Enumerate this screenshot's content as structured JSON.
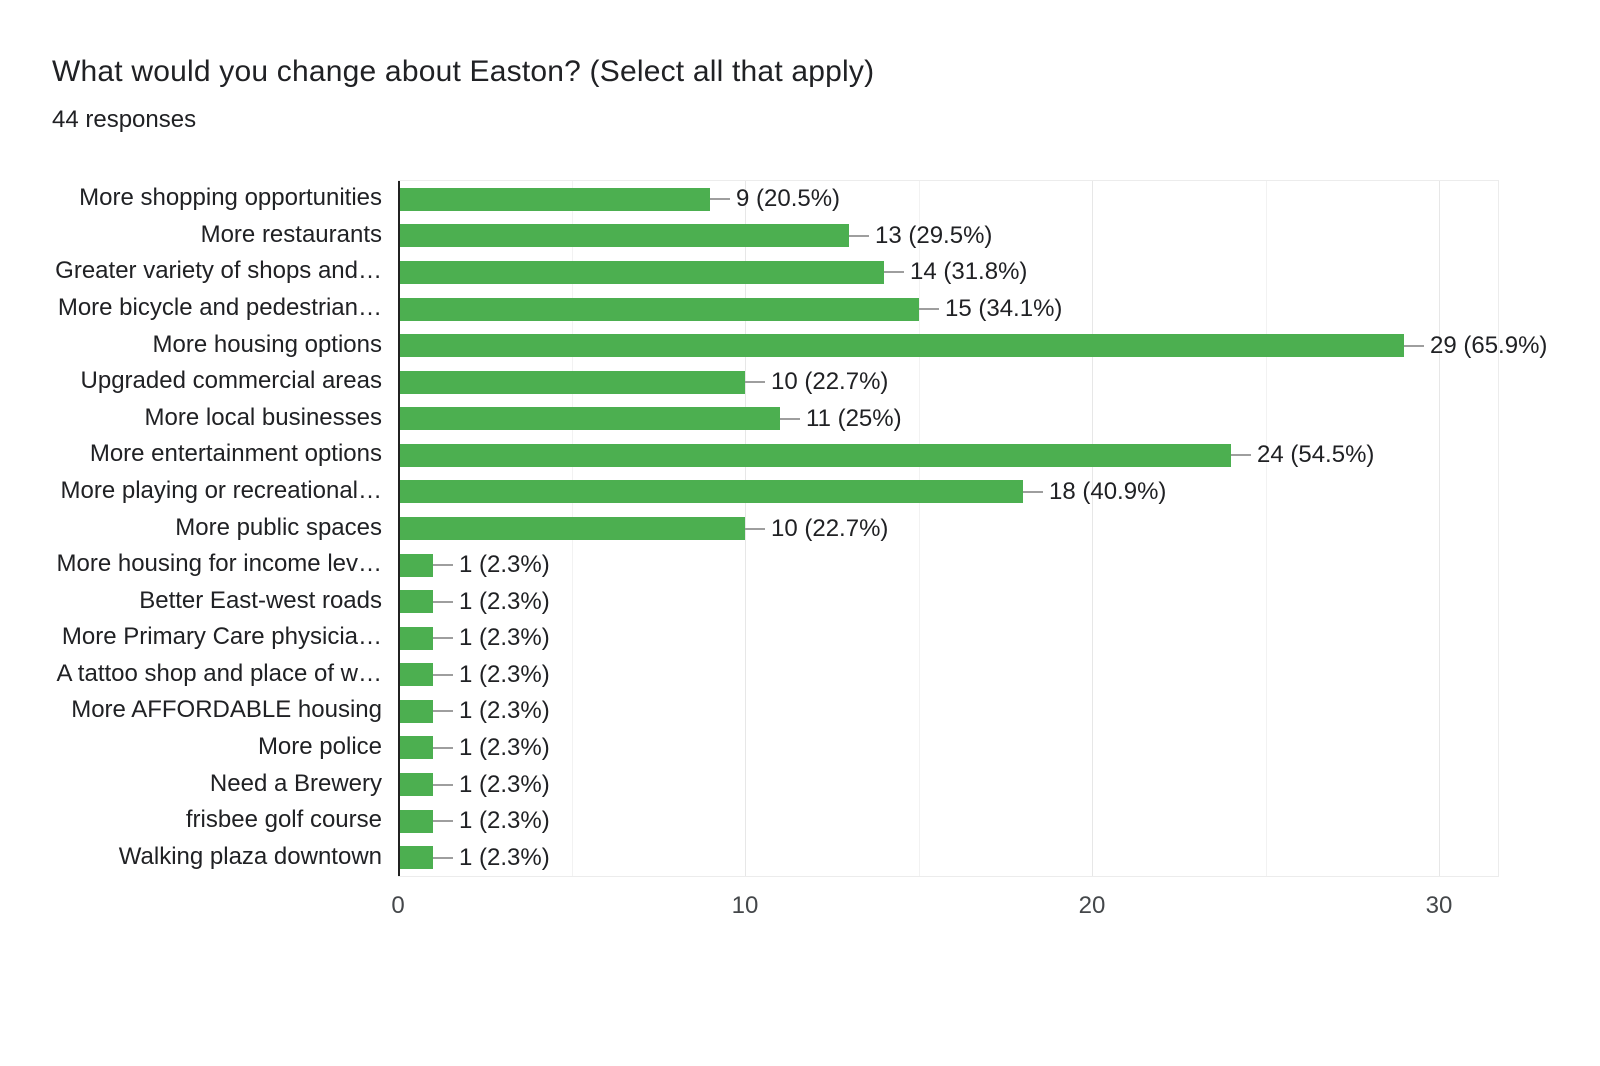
{
  "chart_data": {
    "type": "bar",
    "orientation": "horizontal",
    "title": "What would you change about Easton? (Select all that apply)",
    "subtitle": "44 responses",
    "categories": [
      "More shopping opportunities",
      "More restaurants",
      "Greater variety of shops and…",
      "More bicycle and pedestrian…",
      "More housing options",
      "Upgraded commercial areas",
      "More local businesses",
      "More entertainment options",
      "More playing or recreational…",
      "More public spaces",
      "More housing for income lev…",
      "Better East-west roads",
      "More Primary Care physicia…",
      "A tattoo shop and place of w…",
      "More AFFORDABLE housing",
      "More police",
      "Need a Brewery",
      "frisbee golf course",
      "Walking plaza downtown"
    ],
    "values": [
      9,
      13,
      14,
      15,
      29,
      10,
      11,
      24,
      18,
      10,
      1,
      1,
      1,
      1,
      1,
      1,
      1,
      1,
      1
    ],
    "value_labels": [
      "9 (20.5%)",
      "13 (29.5%)",
      "14 (31.8%)",
      "15 (34.1%)",
      "29 (65.9%)",
      "10 (22.7%)",
      "11 (25%)",
      "24 (54.5%)",
      "18 (40.9%)",
      "10 (22.7%)",
      "1 (2.3%)",
      "1 (2.3%)",
      "1 (2.3%)",
      "1 (2.3%)",
      "1 (2.3%)",
      "1 (2.3%)",
      "1 (2.3%)",
      "1 (2.3%)",
      "1 (2.3%)"
    ],
    "xlim": [
      0,
      30
    ],
    "x_ticks": [
      "0",
      "10",
      "20",
      "30"
    ],
    "x_tick_values": [
      0,
      10,
      20,
      30
    ],
    "minor_gridlines": [
      5,
      15,
      25
    ],
    "major_gridlines": [
      10,
      20,
      30
    ],
    "legend": "none",
    "grid": true,
    "colors": {
      "bar": "#4caf50",
      "leader_line": "#9e9e9e",
      "text": "#202124",
      "tick_text": "#44474a",
      "axis_line": "#212121",
      "major_grid": "#e7e7e7",
      "minor_grid": "#f2f2f2"
    }
  }
}
